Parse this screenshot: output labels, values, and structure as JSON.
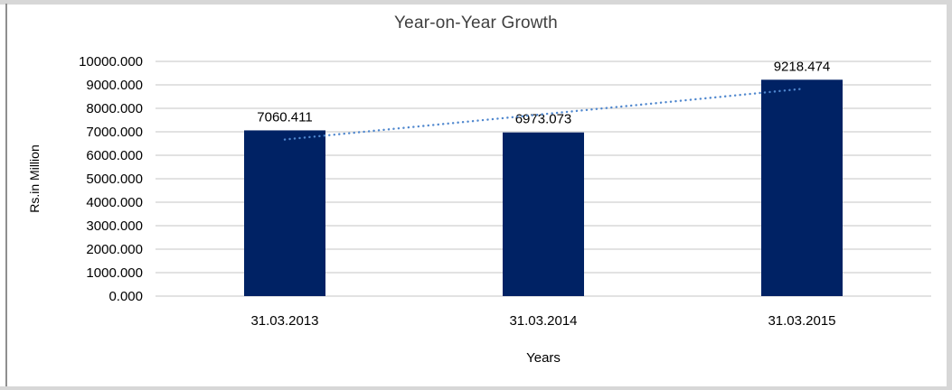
{
  "frame": {
    "background": "#ffffff",
    "border_color": "#d7d7d7",
    "left_edge_color": "#8f8f8f"
  },
  "chart_data": {
    "type": "bar",
    "title": "Year-on-Year Growth",
    "categories": [
      "31.03.2013",
      "31.03.2014",
      "31.03.2015"
    ],
    "values": [
      7060.411,
      6973.073,
      9218.474
    ],
    "data_labels": [
      "7060.411",
      "6973.073",
      "9218.474"
    ],
    "xlabel": "Years",
    "ylabel": "Rs.in Million",
    "ylim": [
      0,
      10000
    ],
    "ytick_step": 1000,
    "ytick_decimals": 3,
    "grid": true,
    "legend_position": "none",
    "bar_color": "#002264",
    "gridline_color": "#d9d9d9",
    "tick_text_color": "#000000",
    "title_color": "#404040",
    "trendline": {
      "type": "linear",
      "style": "dotted",
      "color": "#4f87ce"
    }
  }
}
